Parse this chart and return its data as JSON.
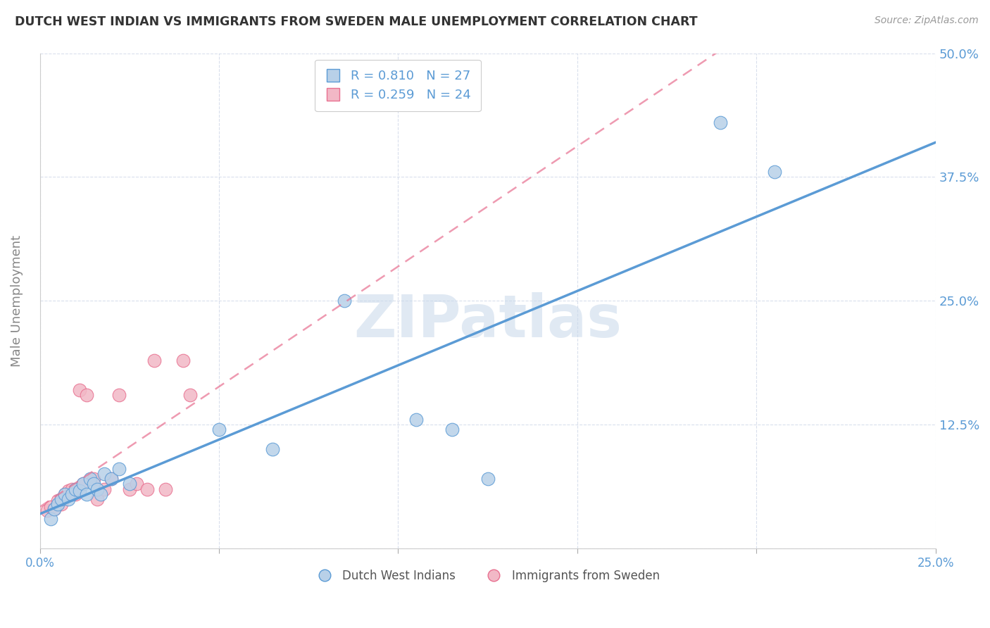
{
  "title": "DUTCH WEST INDIAN VS IMMIGRANTS FROM SWEDEN MALE UNEMPLOYMENT CORRELATION CHART",
  "source": "Source: ZipAtlas.com",
  "ylabel": "Male Unemployment",
  "xlim": [
    0.0,
    0.25
  ],
  "ylim": [
    0.0,
    0.5
  ],
  "xticks": [
    0.0,
    0.05,
    0.1,
    0.15,
    0.2,
    0.25
  ],
  "yticks": [
    0.0,
    0.125,
    0.25,
    0.375,
    0.5
  ],
  "series1_name": "Dutch West Indians",
  "series1_fill": "#b8d0e8",
  "series1_edge": "#5b9bd5",
  "series1_line": "#5b9bd5",
  "series1_R": 0.81,
  "series1_N": 27,
  "series2_name": "Immigrants from Sweden",
  "series2_fill": "#f2b8c6",
  "series2_edge": "#e87090",
  "series2_line": "#e87090",
  "series2_R": 0.259,
  "series2_N": 24,
  "background_color": "#ffffff",
  "grid_color": "#d0d8e8",
  "title_color": "#333333",
  "axis_label_color": "#5b9bd5",
  "ylabel_color": "#888888",
  "watermark_text": "ZIPatlas",
  "watermark_color": "#c8d8ea",
  "dwi_x": [
    0.003,
    0.004,
    0.005,
    0.006,
    0.007,
    0.008,
    0.009,
    0.01,
    0.011,
    0.012,
    0.013,
    0.014,
    0.015,
    0.016,
    0.017,
    0.018,
    0.02,
    0.022,
    0.025,
    0.05,
    0.065,
    0.085,
    0.105,
    0.115,
    0.125,
    0.19,
    0.205
  ],
  "dwi_y": [
    0.03,
    0.04,
    0.045,
    0.05,
    0.055,
    0.05,
    0.055,
    0.06,
    0.058,
    0.065,
    0.055,
    0.07,
    0.065,
    0.06,
    0.055,
    0.075,
    0.07,
    0.08,
    0.065,
    0.12,
    0.1,
    0.25,
    0.13,
    0.12,
    0.07,
    0.43,
    0.38
  ],
  "swe_x": [
    0.002,
    0.003,
    0.004,
    0.005,
    0.006,
    0.007,
    0.008,
    0.009,
    0.01,
    0.011,
    0.012,
    0.013,
    0.015,
    0.016,
    0.018,
    0.02,
    0.022,
    0.025,
    0.027,
    0.03,
    0.032,
    0.035,
    0.04,
    0.042
  ],
  "swe_y": [
    0.038,
    0.042,
    0.04,
    0.048,
    0.045,
    0.055,
    0.058,
    0.06,
    0.055,
    0.16,
    0.065,
    0.155,
    0.07,
    0.05,
    0.06,
    0.07,
    0.155,
    0.06,
    0.065,
    0.06,
    0.19,
    0.06,
    0.19,
    0.155
  ]
}
